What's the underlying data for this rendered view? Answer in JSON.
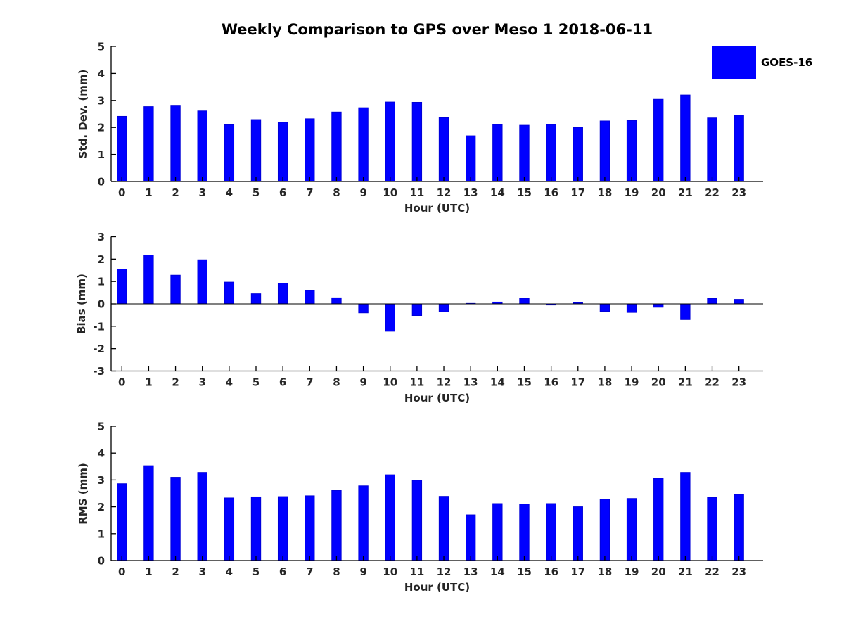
{
  "figure": {
    "title": "Weekly Comparison to GPS over Meso 1 2018-06-11",
    "legend": {
      "label": "GOES-16",
      "color": "#0000ff"
    },
    "colors": {
      "bar_fill": "#0000ff",
      "bar_edge": "#0000d8",
      "spine": "#000000",
      "tick_text": "#262626"
    }
  },
  "chart_data": [
    {
      "type": "bar",
      "name": "std-dev",
      "series_name": "GOES-16",
      "ylabel": "Std. Dev. (mm)",
      "xlabel": "Hour (UTC)",
      "categories": [
        "0",
        "1",
        "2",
        "3",
        "4",
        "5",
        "6",
        "7",
        "8",
        "9",
        "10",
        "11",
        "12",
        "13",
        "14",
        "15",
        "16",
        "17",
        "18",
        "19",
        "20",
        "21",
        "22",
        "23"
      ],
      "values": [
        2.41,
        2.77,
        2.82,
        2.61,
        2.1,
        2.29,
        2.19,
        2.32,
        2.57,
        2.73,
        2.94,
        2.93,
        2.36,
        1.69,
        2.11,
        2.08,
        2.11,
        2.0,
        2.24,
        2.26,
        3.04,
        3.2,
        2.35,
        2.45
      ],
      "ylim": [
        0,
        5
      ],
      "yticks": [
        0,
        1,
        2,
        3,
        4,
        5
      ],
      "zero_line": false,
      "grid": false,
      "legend_position": "upper right"
    },
    {
      "type": "bar",
      "name": "bias",
      "series_name": "GOES-16",
      "ylabel": "Bias (mm)",
      "xlabel": "Hour (UTC)",
      "categories": [
        "0",
        "1",
        "2",
        "3",
        "4",
        "5",
        "6",
        "7",
        "8",
        "9",
        "10",
        "11",
        "12",
        "13",
        "14",
        "15",
        "16",
        "17",
        "18",
        "19",
        "20",
        "21",
        "22",
        "23"
      ],
      "values": [
        1.55,
        2.18,
        1.28,
        1.97,
        0.97,
        0.45,
        0.92,
        0.6,
        0.27,
        -0.4,
        -1.22,
        -0.52,
        -0.35,
        0.02,
        0.08,
        0.25,
        -0.05,
        0.05,
        -0.33,
        -0.38,
        -0.15,
        -0.7,
        0.24,
        0.2
      ],
      "ylim": [
        -3,
        3
      ],
      "yticks": [
        -3,
        -2,
        -1,
        0,
        1,
        2,
        3
      ],
      "zero_line": true,
      "grid": false,
      "legend_position": "none"
    },
    {
      "type": "bar",
      "name": "rms",
      "series_name": "GOES-16",
      "ylabel": "RMS (mm)",
      "xlabel": "Hour (UTC)",
      "categories": [
        "0",
        "1",
        "2",
        "3",
        "4",
        "5",
        "6",
        "7",
        "8",
        "9",
        "10",
        "11",
        "12",
        "13",
        "14",
        "15",
        "16",
        "17",
        "18",
        "19",
        "20",
        "21",
        "22",
        "23"
      ],
      "values": [
        2.86,
        3.53,
        3.1,
        3.28,
        2.33,
        2.37,
        2.38,
        2.41,
        2.61,
        2.78,
        3.19,
        2.99,
        2.39,
        1.7,
        2.12,
        2.1,
        2.12,
        2.0,
        2.28,
        2.31,
        3.06,
        3.28,
        2.35,
        2.46
      ],
      "ylim": [
        0,
        5
      ],
      "yticks": [
        0,
        1,
        2,
        3,
        4,
        5
      ],
      "zero_line": false,
      "grid": false,
      "legend_position": "none"
    }
  ]
}
